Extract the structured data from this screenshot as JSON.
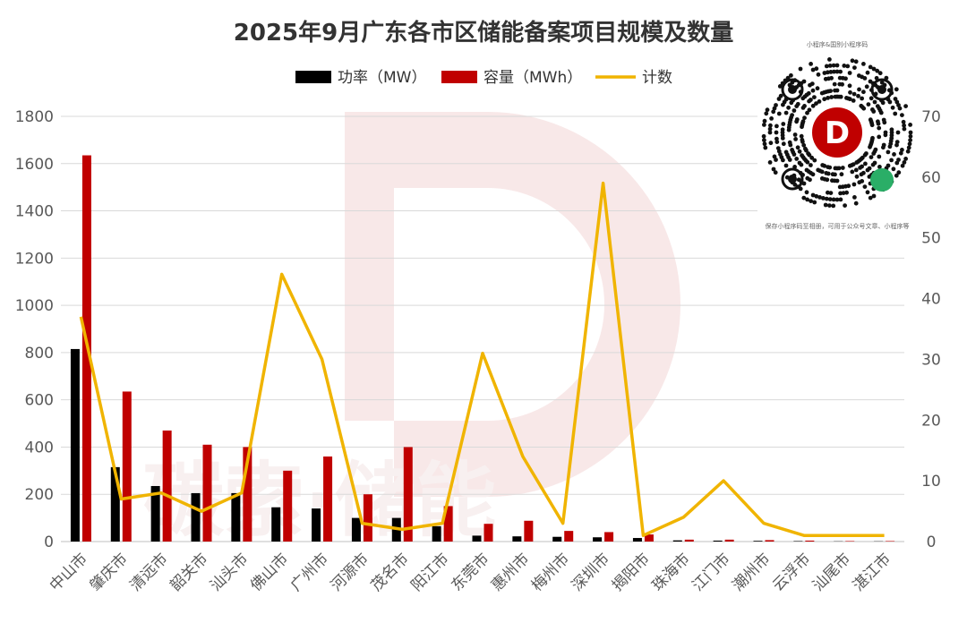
{
  "chart_data": {
    "type": "bar",
    "title": "2025年9月广东各市区储能备案项目规模及数量",
    "categories": [
      "中山市",
      "肇庆市",
      "清远市",
      "韶关市",
      "汕头市",
      "佛山市",
      "广州市",
      "河源市",
      "茂名市",
      "阳江市",
      "东莞市",
      "惠州市",
      "梅州市",
      "深圳市",
      "揭阳市",
      "珠海市",
      "江门市",
      "潮州市",
      "云浮市",
      "汕尾市",
      "湛江市"
    ],
    "series": [
      {
        "name": "功率（MW）",
        "type": "bar",
        "axis": "left",
        "color": "#000000",
        "values": [
          815,
          315,
          235,
          205,
          205,
          145,
          140,
          100,
          100,
          65,
          25,
          22,
          20,
          18,
          15,
          5,
          4,
          3,
          2,
          1,
          1
        ]
      },
      {
        "name": "容量（MWh）",
        "type": "bar",
        "axis": "left",
        "color": "#c00000",
        "values": [
          1635,
          635,
          470,
          410,
          400,
          300,
          360,
          200,
          400,
          150,
          75,
          88,
          45,
          40,
          30,
          8,
          8,
          6,
          4,
          2,
          2
        ]
      },
      {
        "name": "计数",
        "type": "line",
        "axis": "right",
        "color": "#f0b400",
        "values": [
          37,
          7,
          8,
          5,
          8,
          44,
          30,
          3,
          2,
          3,
          31,
          14,
          3,
          59,
          1,
          4,
          10,
          3,
          1,
          1,
          1
        ]
      }
    ],
    "ylim_left": [
      0,
      1800
    ],
    "ylim_right": [
      0,
      70
    ],
    "yticks_left": [
      0,
      200,
      400,
      600,
      800,
      1000,
      1200,
      1400,
      1600,
      1800
    ],
    "yticks_right": [
      0,
      10,
      20,
      30,
      40,
      50,
      60,
      70
    ],
    "legend_position": "top",
    "grid": true
  },
  "watermark": {
    "logo_letter": "D",
    "text": "碳索·储能"
  },
  "qr": {
    "top_caption": "小程序&国别小程序码",
    "bottom_caption": "保存小程序码至相册，可用于公众号文章、小程序等"
  },
  "colors": {
    "gridline": "#d9d9d9",
    "axis": "#bfbfbf"
  }
}
